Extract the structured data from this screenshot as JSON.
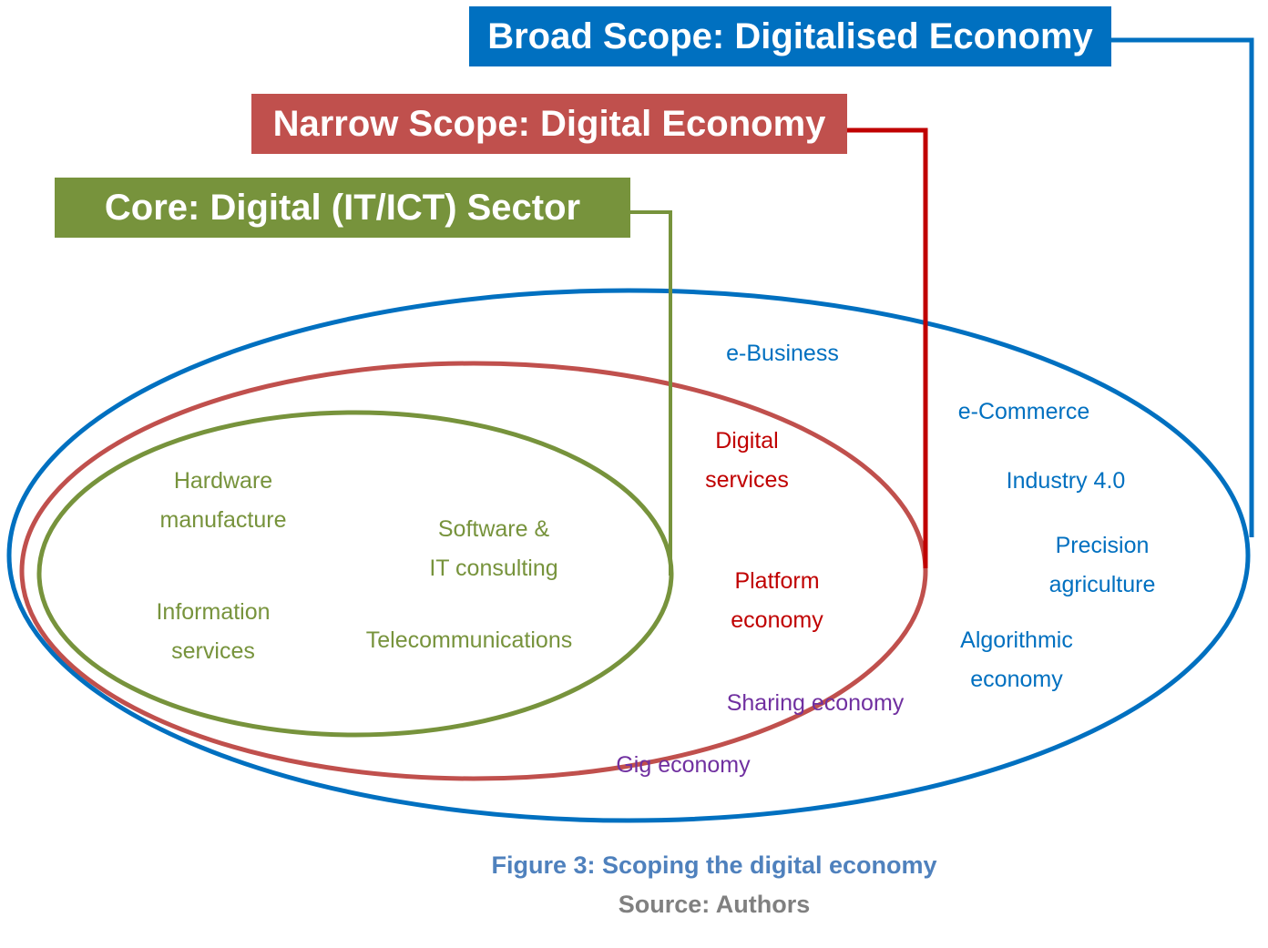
{
  "colors": {
    "broad": "#0070c0",
    "narrow": "#c0504d",
    "narrow_connector": "#c00000",
    "core": "#77933c",
    "sharing": "#7030a0",
    "caption": "#4f81bd",
    "source": "#808080"
  },
  "scopes": {
    "broad": "Broad Scope: Digitalised Economy",
    "narrow": "Narrow Scope: Digital Economy",
    "core": "Core: Digital (IT/ICT) Sector"
  },
  "core_items": {
    "hardware": [
      "Hardware",
      "manufacture"
    ],
    "software": [
      "Software &",
      "IT consulting"
    ],
    "information": [
      "Information",
      "services"
    ],
    "telecom": "Telecommunications"
  },
  "narrow_items": {
    "digital_services": [
      "Digital",
      "services"
    ],
    "platform": [
      "Platform",
      "economy"
    ]
  },
  "shared_items": {
    "sharing": "Sharing economy",
    "gig": "Gig economy"
  },
  "broad_items": {
    "ebusiness": "e-Business",
    "ecommerce": "e-Commerce",
    "industry": "Industry 4.0",
    "precision": [
      "Precision",
      "agriculture"
    ],
    "algorithmic": [
      "Algorithmic",
      "economy"
    ]
  },
  "caption": {
    "figure": "Figure 3: Scoping the digital economy",
    "source": "Source: Authors"
  }
}
